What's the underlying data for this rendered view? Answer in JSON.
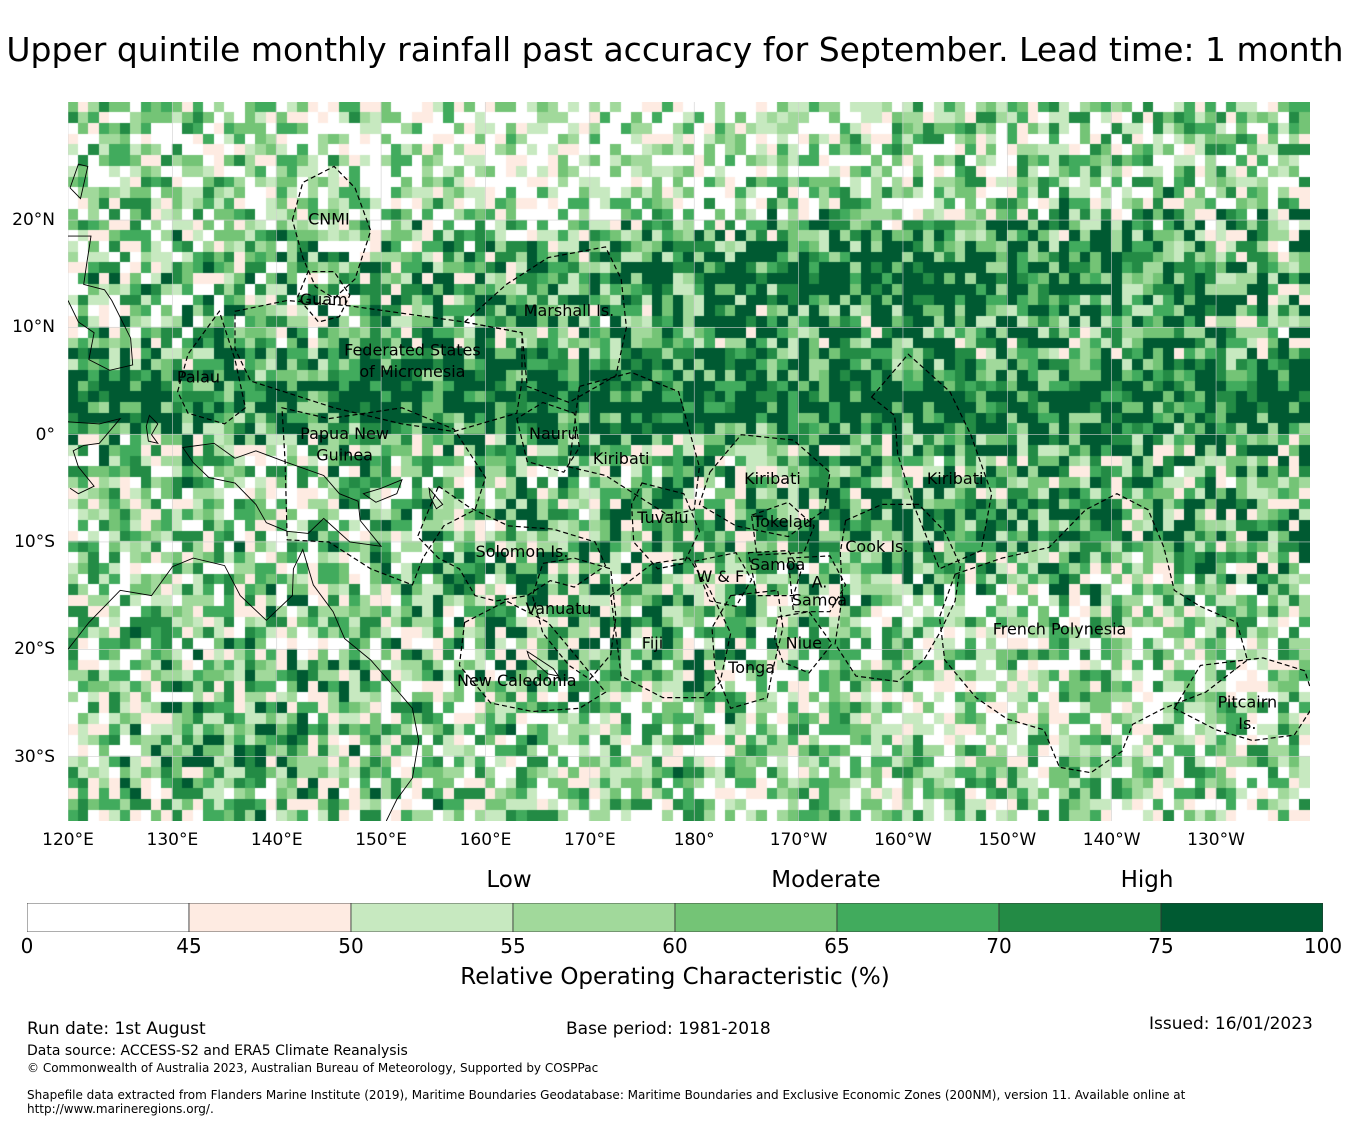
{
  "title": "Upper quintile monthly rainfall past accuracy for September. Lead time: 1 month",
  "map": {
    "projection": "plate-carree",
    "lon_range_deg_east": [
      120,
      239
    ],
    "lat_range": [
      -36,
      31
    ],
    "lon_ticks": [
      "120°E",
      "130°E",
      "140°E",
      "150°E",
      "160°E",
      "170°E",
      "180°",
      "170°W",
      "160°W",
      "150°W",
      "140°W",
      "130°W"
    ],
    "lat_ticks": [
      "20°N",
      "10°N",
      "0°",
      "10°S",
      "20°S",
      "30°S"
    ],
    "regions": [
      {
        "name": "CNMI",
        "lon": 145,
        "lat": 20
      },
      {
        "name": "Guam",
        "lon": 144.5,
        "lat": 12.5
      },
      {
        "name": "Marshall Is.",
        "lon": 168,
        "lat": 11.5
      },
      {
        "name": "Federated States",
        "lon": 153,
        "lat": 7.8
      },
      {
        "name": "of Micronesia",
        "lon": 153,
        "lat": 5.8
      },
      {
        "name": "Palau",
        "lon": 132.5,
        "lat": 5.3
      },
      {
        "name": "Papua New",
        "lon": 146.5,
        "lat": 0
      },
      {
        "name": "Guinea",
        "lon": 146.5,
        "lat": -2
      },
      {
        "name": "Nauru",
        "lon": 166.5,
        "lat": 0
      },
      {
        "name": "Kiribati",
        "lon": 173,
        "lat": -2.3
      },
      {
        "name": "Kiribati",
        "lon": -172.5,
        "lat": -4.2
      },
      {
        "name": "Kiribati",
        "lon": -155,
        "lat": -4.2
      },
      {
        "name": "Tuvalu",
        "lon": 177,
        "lat": -7.8
      },
      {
        "name": "Tokelau",
        "lon": -171.5,
        "lat": -8.2
      },
      {
        "name": "Solomon Is.",
        "lon": 163.5,
        "lat": -11
      },
      {
        "name": "Cook Is.",
        "lon": -162.5,
        "lat": -10.5
      },
      {
        "name": "Samoa",
        "lon": -172,
        "lat": -12.2
      },
      {
        "name": "W & F",
        "lon": -177.5,
        "lat": -13.3
      },
      {
        "name": "A.",
        "lon": -168,
        "lat": -13.8
      },
      {
        "name": "Samoa",
        "lon": -168,
        "lat": -15.5
      },
      {
        "name": "Vanuatu",
        "lon": 167,
        "lat": -16.3
      },
      {
        "name": "Fiji",
        "lon": 176,
        "lat": -19.5
      },
      {
        "name": "Niue",
        "lon": -169.5,
        "lat": -19.5
      },
      {
        "name": "Tonga",
        "lon": -174.5,
        "lat": -21.8
      },
      {
        "name": "French Polynesia",
        "lon": -145,
        "lat": -18.2
      },
      {
        "name": "New Caledonia",
        "lon": 163,
        "lat": -23
      },
      {
        "name": "Pitcairn",
        "lon": -127,
        "lat": -25
      },
      {
        "name": "Is.",
        "lon": -127,
        "lat": -27
      }
    ]
  },
  "legend": {
    "categories": [
      "Low",
      "Moderate",
      "High"
    ],
    "bins": [
      {
        "from": 0,
        "to": 45,
        "color": "#ffffff"
      },
      {
        "from": 45,
        "to": 50,
        "color": "#feebe2"
      },
      {
        "from": 50,
        "to": 55,
        "color": "#c7e9c0"
      },
      {
        "from": 55,
        "to": 60,
        "color": "#a1d99b"
      },
      {
        "from": 60,
        "to": 65,
        "color": "#74c476"
      },
      {
        "from": 65,
        "to": 70,
        "color": "#41ab5d"
      },
      {
        "from": 70,
        "to": 75,
        "color": "#238b45"
      },
      {
        "from": 75,
        "to": 100,
        "color": "#005a32"
      }
    ],
    "tick_labels": [
      "0",
      "45",
      "50",
      "55",
      "60",
      "65",
      "70",
      "75",
      "100"
    ],
    "title": "Relative Operating Characteristic (%)"
  },
  "footer": {
    "run_date": "Run date: 1st August",
    "base_period": "Base period: 1981-2018",
    "issued": "Issued: 16/01/2023",
    "data_source": "Data source: ACCESS-S2 and ERA5 Climate Reanalysis",
    "copyright": "© Commonwealth of Australia 2023, Australian Bureau of Meteorology, Supported by COSPPac",
    "shapefile_1": "Shapefile data extracted from Flanders Marine Institute (2019), Maritime Boundaries Geodatabase: Maritime Boundaries and Exclusive Economic Zones (200NM), version 11. Available online at",
    "shapefile_2": "http://www.marineregions.org/."
  }
}
